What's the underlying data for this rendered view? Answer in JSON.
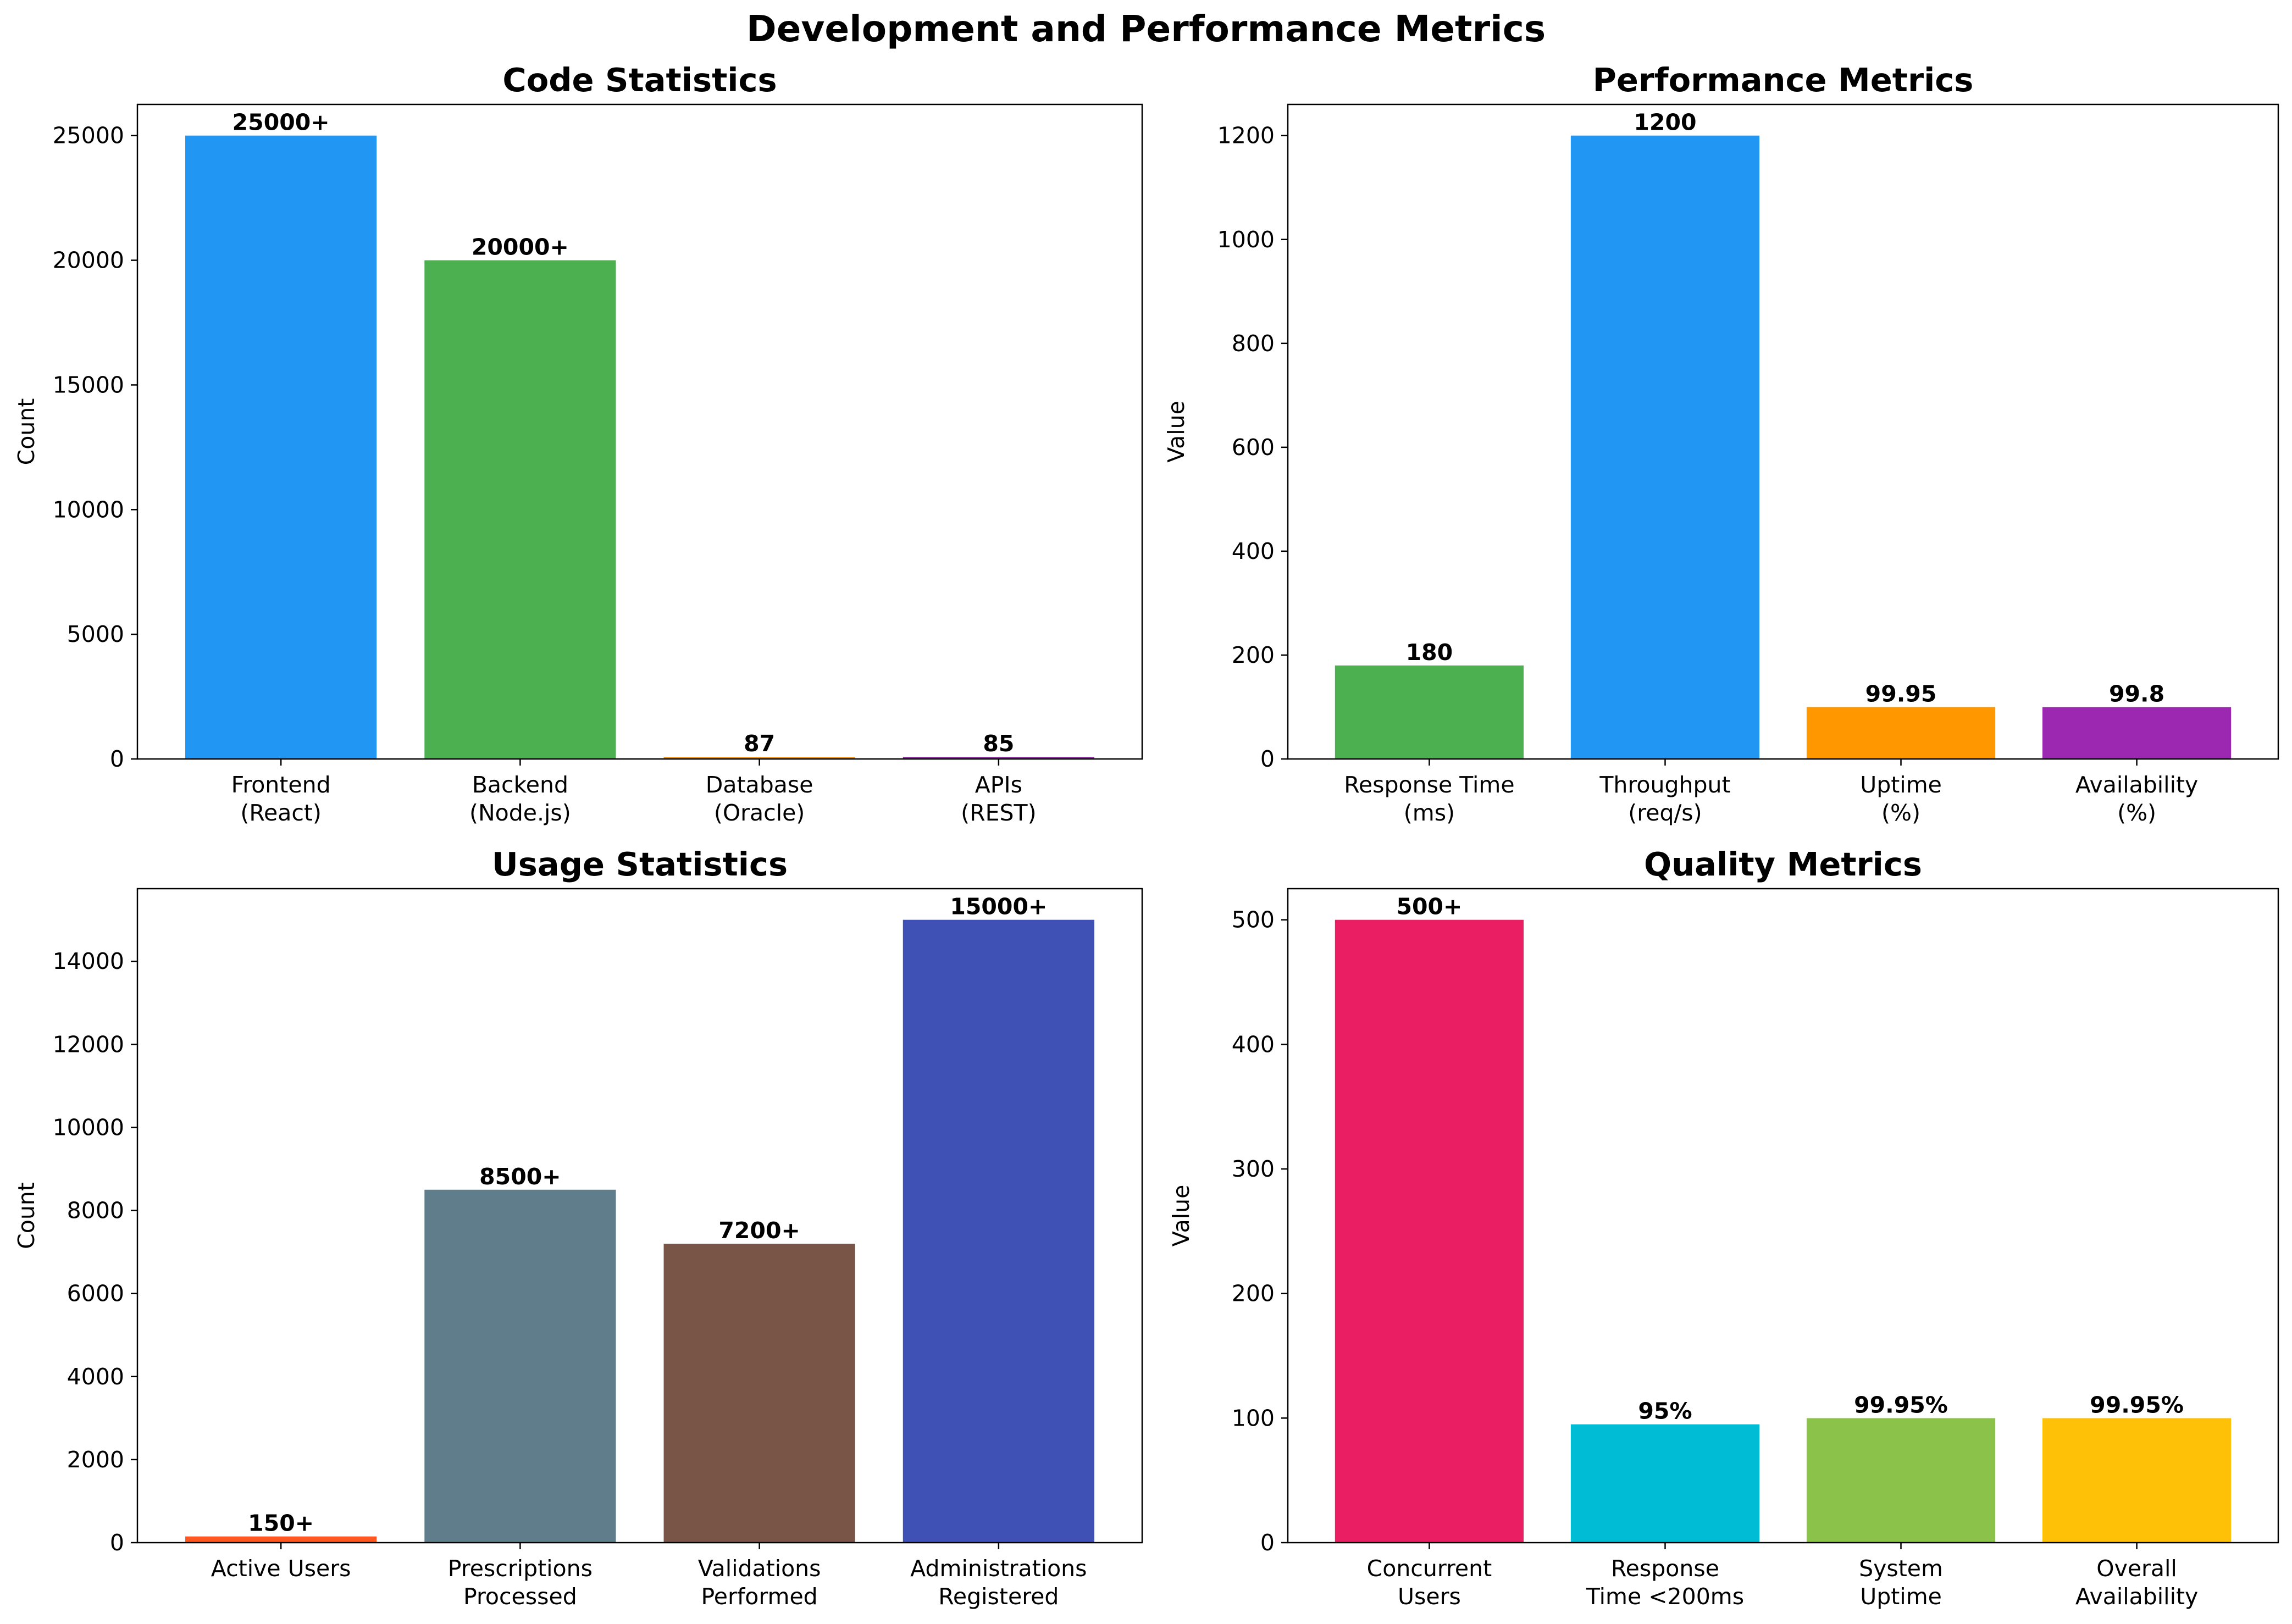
{
  "title": "Development and Performance Metrics",
  "chart_data": [
    {
      "type": "bar",
      "title": "Code Statistics",
      "ylabel": "Count",
      "ylim": [
        0,
        26250
      ],
      "yticks": [
        0,
        5000,
        10000,
        15000,
        20000,
        25000
      ],
      "categories": [
        [
          "Frontend",
          "(React)"
        ],
        [
          "Backend",
          "(Node.js)"
        ],
        [
          "Database",
          "(Oracle)"
        ],
        [
          "APIs",
          "(REST)"
        ]
      ],
      "values": [
        25000,
        20000,
        87,
        85
      ],
      "labels": [
        "25000+",
        "20000+",
        "87",
        "85"
      ],
      "colors": [
        "#2196F3",
        "#4CAF50",
        "#FF9800",
        "#9C27B0"
      ]
    },
    {
      "type": "bar",
      "title": "Performance Metrics",
      "ylabel": "Value",
      "ylim": [
        0,
        1260
      ],
      "yticks": [
        0,
        200,
        400,
        600,
        800,
        1000,
        1200
      ],
      "categories": [
        [
          "Response Time",
          "(ms)"
        ],
        [
          "Throughput",
          "(req/s)"
        ],
        [
          "Uptime",
          "(%)"
        ],
        [
          "Availability",
          "(%)"
        ]
      ],
      "values": [
        180,
        1200,
        99.95,
        99.8
      ],
      "labels": [
        "180",
        "1200",
        "99.95",
        "99.8"
      ],
      "colors": [
        "#4CAF50",
        "#2196F3",
        "#FF9800",
        "#9C27B0"
      ]
    },
    {
      "type": "bar",
      "title": "Usage Statistics",
      "ylabel": "Count",
      "ylim": [
        0,
        15750
      ],
      "yticks": [
        0,
        2000,
        4000,
        6000,
        8000,
        10000,
        12000,
        14000
      ],
      "categories": [
        [
          "Active Users"
        ],
        [
          "Prescriptions",
          "Processed"
        ],
        [
          "Validations",
          "Performed"
        ],
        [
          "Administrations",
          "Registered"
        ]
      ],
      "values": [
        150,
        8500,
        7200,
        15000
      ],
      "labels": [
        "150+",
        "8500+",
        "7200+",
        "15000+"
      ],
      "colors": [
        "#FF5722",
        "#607D8B",
        "#795548",
        "#3F51B5"
      ]
    },
    {
      "type": "bar",
      "title": "Quality Metrics",
      "ylabel": "Value",
      "ylim": [
        0,
        525
      ],
      "yticks": [
        0,
        100,
        200,
        300,
        400,
        500
      ],
      "categories": [
        [
          "Concurrent",
          "Users"
        ],
        [
          "Response",
          "Time <200ms"
        ],
        [
          "System",
          "Uptime"
        ],
        [
          "Overall",
          "Availability"
        ]
      ],
      "values": [
        500,
        95,
        99.95,
        99.95
      ],
      "labels": [
        "500+",
        "95%",
        "99.95%",
        "99.95%"
      ],
      "colors": [
        "#E91E63",
        "#00BCD4",
        "#8BC34A",
        "#FFC107"
      ]
    }
  ]
}
